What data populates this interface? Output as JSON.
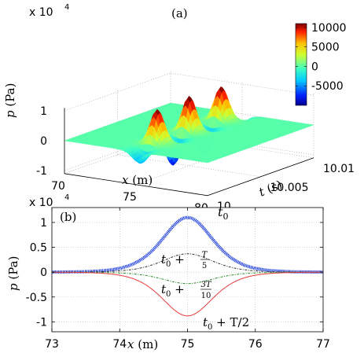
{
  "chart_data": [
    {
      "type": "surface",
      "panel_label": "(a)",
      "multiplier": "x 10",
      "multiplier_exp": "4",
      "xlabel_var": "x",
      "xlabel_unit": " (m)",
      "ylabel_var": "t",
      "ylabel_unit": " (s)",
      "zlabel_var": "p",
      "zlabel_unit": " (Pa)",
      "x_ticks": [
        "70",
        "75",
        "80"
      ],
      "t_ticks": [
        "10",
        "10.005",
        "10.01"
      ],
      "z_ticks": [
        "1",
        "0",
        "-1"
      ],
      "colorbar_ticks": [
        "10000",
        "5000",
        "0",
        "-5000"
      ],
      "colorbar_range": [
        -10000,
        11000
      ],
      "xlim": [
        70,
        80
      ],
      "tlim": [
        10,
        10.01
      ],
      "zlim": [
        -1.1,
        1.1
      ],
      "peaks": [
        {
          "x": 75,
          "t": 10.002,
          "p_max": 11000,
          "p_min": -9000
        },
        {
          "x": 75,
          "t": 10.005,
          "p_max": 11000,
          "p_min": -9000
        },
        {
          "x": 75,
          "t": 10.008,
          "p_max": 11000,
          "p_min": -9000
        }
      ]
    },
    {
      "type": "line",
      "panel_label": "(b)",
      "multiplier": "x 10",
      "multiplier_exp": "4",
      "xlabel_var": "x",
      "xlabel_unit": " (m)",
      "ylabel_var": "p",
      "ylabel_unit": " (Pa)",
      "xlim": [
        73,
        77
      ],
      "ylim": [
        -1.2,
        1.3
      ],
      "x_ticks": [
        "73",
        "74",
        "75",
        "76",
        "77"
      ],
      "x_tick_values": [
        73,
        74,
        75,
        76,
        77
      ],
      "y_ticks": [
        "1",
        "0.5",
        "0",
        "-0.5",
        "-1"
      ],
      "y_tick_values": [
        1,
        0.5,
        0,
        -0.5,
        -1
      ],
      "grid": true,
      "series": [
        {
          "label_main": "t",
          "label_sub": "0",
          "label_extra": "",
          "label_num": "",
          "label_den": "",
          "amplitude": 1.1,
          "width": 0.5,
          "color": "#1f3fdc",
          "style": "thick-dotted"
        },
        {
          "label_main": "t",
          "label_sub": "0",
          "label_extra": " + ",
          "label_num": "T",
          "label_den": "5",
          "amplitude": 0.37,
          "width": 0.5,
          "color": "#333333",
          "style": "dash-dot"
        },
        {
          "label_main": "t",
          "label_sub": "0",
          "label_extra": " + ",
          "label_num": "3T",
          "label_den": "10",
          "amplitude": -0.23,
          "width": 0.5,
          "color": "#2a8a2a",
          "style": "dash-dot"
        },
        {
          "label_main": "t",
          "label_sub": "0",
          "label_extra": " + T/2",
          "label_num": "",
          "label_den": "",
          "amplitude": -0.88,
          "width": 0.5,
          "color": "#e83a3a",
          "style": "solid"
        }
      ]
    }
  ]
}
